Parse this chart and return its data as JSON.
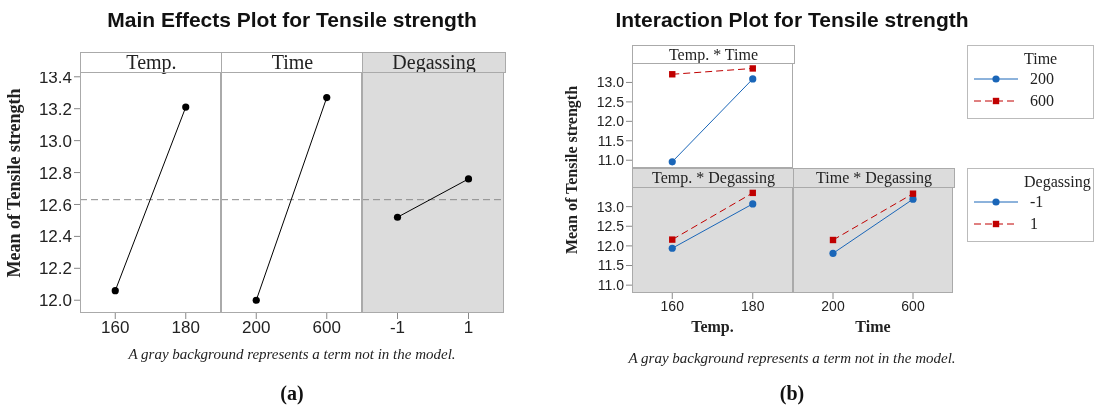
{
  "chart_data": [
    {
      "type": "line",
      "title": "Temp.",
      "ylabel": "Mean of Tensile strength",
      "annotations": [
        "Main Effects Plot for Tensile strength",
        "A gray background represents a term not in the model.",
        "(a)"
      ],
      "categories": [
        "160",
        "180"
      ],
      "series": [
        {
          "color": "#000000",
          "values": [
            12.06,
            13.21
          ]
        }
      ],
      "marker": "circle",
      "line_style": "solid",
      "ylim": [
        11.92,
        13.43
      ],
      "yticks": [
        {
          "value": 12,
          "label": "12.0"
        },
        12.2,
        12.4,
        12.6,
        12.8,
        {
          "value": 13,
          "label": "13.0"
        },
        13.2,
        13.4
      ],
      "ref_lines": [
        {
          "axis": "y",
          "value": 12.63,
          "color": "#8c8c8c",
          "line_style": "dashed"
        }
      ],
      "grid": false,
      "legend": false
    },
    {
      "type": "line",
      "title": "Time",
      "categories": [
        "200",
        "600"
      ],
      "series": [
        {
          "color": "#000000",
          "values": [
            12.0,
            13.27
          ]
        }
      ],
      "marker": "circle",
      "line_style": "solid",
      "ylim": [
        11.92,
        13.43
      ],
      "tick_labels": "x",
      "ref_lines": [
        {
          "axis": "y",
          "value": 12.63,
          "color": "#8c8c8c",
          "line_style": "dashed"
        }
      ],
      "grid": false,
      "legend": false
    },
    {
      "type": "line",
      "title": "Degassing",
      "categories": [
        "-1",
        "1"
      ],
      "series": [
        {
          "color": "#000000",
          "values": [
            12.52,
            12.76
          ]
        }
      ],
      "marker": "circle",
      "line_style": "solid",
      "ylim": [
        11.92,
        13.43
      ],
      "tick_labels": "x",
      "ref_lines": [
        {
          "axis": "y",
          "value": 12.63,
          "color": "#8c8c8c",
          "line_style": "dashed"
        }
      ],
      "bands": [
        {
          "axis": "y",
          "from": 11.92,
          "to": 13.43,
          "color": "#dcdcdc"
        }
      ],
      "grid": false,
      "legend": false
    },
    {
      "type": "line",
      "title": "Temp. * Time",
      "ylabel": "Mean of Tensile strength",
      "annotations": [
        "Interaction Plot for Tensile strength",
        "A gray background represents a term not in the model.",
        "(b)"
      ],
      "legend_title": "Time",
      "categories": [
        "160",
        "180"
      ],
      "series": [
        {
          "name": "200",
          "color": "#1a66b8",
          "values": [
            10.96,
            13.09
          ],
          "marker": "circle",
          "line_style": "solid"
        },
        {
          "name": "600",
          "color": "#c00000",
          "values": [
            13.21,
            13.36
          ],
          "marker": "square",
          "line_style": "dashed"
        }
      ],
      "ylim": [
        10.8,
        13.5
      ],
      "yticks": [
        {
          "value": 11,
          "label": "11.0"
        },
        11.5,
        {
          "value": 12,
          "label": "12.0"
        },
        12.5,
        {
          "value": 13,
          "label": "13.0"
        }
      ],
      "tick_labels": "y",
      "grid": false,
      "legend": "right"
    },
    {
      "type": "line",
      "title": "Temp. * Degassing",
      "xlabel": "Temp.",
      "categories": [
        "160",
        "180"
      ],
      "series": [
        {
          "color": "#1a66b8",
          "values": [
            11.94,
            13.07
          ],
          "marker": "circle",
          "line_style": "solid"
        },
        {
          "color": "#c00000",
          "values": [
            12.16,
            13.35
          ],
          "marker": "square",
          "line_style": "dashed"
        }
      ],
      "ylim": [
        10.8,
        13.5
      ],
      "yticks": [
        {
          "value": 11,
          "label": "11.0"
        },
        11.5,
        {
          "value": 12,
          "label": "12.0"
        },
        12.5,
        {
          "value": 13,
          "label": "13.0"
        }
      ],
      "bands": [
        {
          "axis": "y",
          "from": 10.8,
          "to": 13.5,
          "color": "#dcdcdc"
        }
      ],
      "grid": false,
      "legend": false
    },
    {
      "type": "line",
      "title": "Time * Degassing",
      "xlabel": "Time",
      "legend_title": "Degassing",
      "categories": [
        "200",
        "600"
      ],
      "series": [
        {
          "name": "-1",
          "color": "#1a66b8",
          "values": [
            11.81,
            13.19
          ],
          "marker": "circle",
          "line_style": "solid"
        },
        {
          "name": "1",
          "color": "#c00000",
          "values": [
            12.15,
            13.33
          ],
          "marker": "square",
          "line_style": "dashed"
        }
      ],
      "ylim": [
        10.8,
        13.5
      ],
      "tick_labels": "x",
      "bands": [
        {
          "axis": "y",
          "from": 10.8,
          "to": 13.5,
          "color": "#dcdcdc"
        }
      ],
      "grid": false,
      "legend": "right"
    }
  ]
}
